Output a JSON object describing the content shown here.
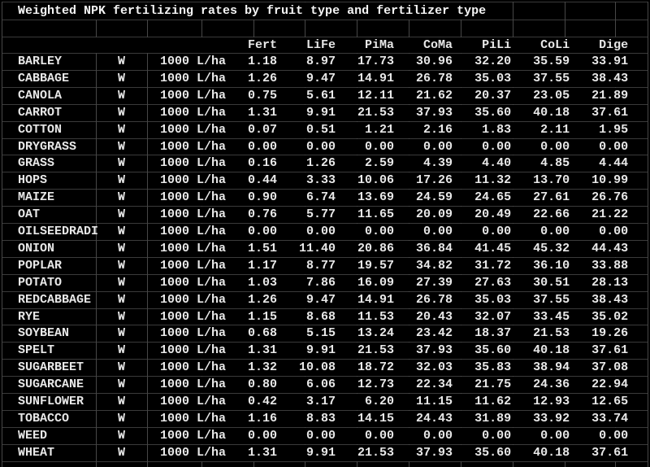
{
  "title": "Weighted NPK fertilizing rates by fruit type and fertilizer type",
  "table": {
    "column_headers": [
      "Fert",
      "LiFe",
      "PiMa",
      "CoMa",
      "PiLi",
      "CoLi",
      "Dige"
    ],
    "rows": [
      {
        "crop": "BARLEY",
        "marker": "W",
        "rate": "1000 L/ha",
        "values": [
          "1.18",
          "8.97",
          "17.73",
          "30.96",
          "32.20",
          "35.59",
          "33.91"
        ]
      },
      {
        "crop": "CABBAGE",
        "marker": "W",
        "rate": "1000 L/ha",
        "values": [
          "1.26",
          "9.47",
          "14.91",
          "26.78",
          "35.03",
          "37.55",
          "38.43"
        ]
      },
      {
        "crop": "CANOLA",
        "marker": "W",
        "rate": "1000 L/ha",
        "values": [
          "0.75",
          "5.61",
          "12.11",
          "21.62",
          "20.37",
          "23.05",
          "21.89"
        ]
      },
      {
        "crop": "CARROT",
        "marker": "W",
        "rate": "1000 L/ha",
        "values": [
          "1.31",
          "9.91",
          "21.53",
          "37.93",
          "35.60",
          "40.18",
          "37.61"
        ]
      },
      {
        "crop": "COTTON",
        "marker": "W",
        "rate": "1000 L/ha",
        "values": [
          "0.07",
          "0.51",
          "1.21",
          "2.16",
          "1.83",
          "2.11",
          "1.95"
        ]
      },
      {
        "crop": "DRYGRASS",
        "marker": "W",
        "rate": "1000 L/ha",
        "values": [
          "0.00",
          "0.00",
          "0.00",
          "0.00",
          "0.00",
          "0.00",
          "0.00"
        ]
      },
      {
        "crop": "GRASS",
        "marker": "W",
        "rate": "1000 L/ha",
        "values": [
          "0.16",
          "1.26",
          "2.59",
          "4.39",
          "4.40",
          "4.85",
          "4.44"
        ]
      },
      {
        "crop": "HOPS",
        "marker": "W",
        "rate": "1000 L/ha",
        "values": [
          "0.44",
          "3.33",
          "10.06",
          "17.26",
          "11.32",
          "13.70",
          "10.99"
        ]
      },
      {
        "crop": "MAIZE",
        "marker": "W",
        "rate": "1000 L/ha",
        "values": [
          "0.90",
          "6.74",
          "13.69",
          "24.59",
          "24.65",
          "27.61",
          "26.76"
        ]
      },
      {
        "crop": "OAT",
        "marker": "W",
        "rate": "1000 L/ha",
        "values": [
          "0.76",
          "5.77",
          "11.65",
          "20.09",
          "20.49",
          "22.66",
          "21.22"
        ]
      },
      {
        "crop": "OILSEEDRADI",
        "marker": "W",
        "rate": "1000 L/ha",
        "values": [
          "0.00",
          "0.00",
          "0.00",
          "0.00",
          "0.00",
          "0.00",
          "0.00"
        ]
      },
      {
        "crop": "ONION",
        "marker": "W",
        "rate": "1000 L/ha",
        "values": [
          "1.51",
          "11.40",
          "20.86",
          "36.84",
          "41.45",
          "45.32",
          "44.43"
        ]
      },
      {
        "crop": "POPLAR",
        "marker": "W",
        "rate": "1000 L/ha",
        "values": [
          "1.17",
          "8.77",
          "19.57",
          "34.82",
          "31.72",
          "36.10",
          "33.88"
        ]
      },
      {
        "crop": "POTATO",
        "marker": "W",
        "rate": "1000 L/ha",
        "values": [
          "1.03",
          "7.86",
          "16.09",
          "27.39",
          "27.63",
          "30.51",
          "28.13"
        ]
      },
      {
        "crop": "REDCABBAGE",
        "marker": "W",
        "rate": "1000 L/ha",
        "values": [
          "1.26",
          "9.47",
          "14.91",
          "26.78",
          "35.03",
          "37.55",
          "38.43"
        ]
      },
      {
        "crop": "RYE",
        "marker": "W",
        "rate": "1000 L/ha",
        "values": [
          "1.15",
          "8.68",
          "11.53",
          "20.43",
          "32.07",
          "33.45",
          "35.02"
        ]
      },
      {
        "crop": "SOYBEAN",
        "marker": "W",
        "rate": "1000 L/ha",
        "values": [
          "0.68",
          "5.15",
          "13.24",
          "23.42",
          "18.37",
          "21.53",
          "19.26"
        ]
      },
      {
        "crop": "SPELT",
        "marker": "W",
        "rate": "1000 L/ha",
        "values": [
          "1.31",
          "9.91",
          "21.53",
          "37.93",
          "35.60",
          "40.18",
          "37.61"
        ]
      },
      {
        "crop": "SUGARBEET",
        "marker": "W",
        "rate": "1000 L/ha",
        "values": [
          "1.32",
          "10.08",
          "18.72",
          "32.03",
          "35.83",
          "38.94",
          "37.08"
        ]
      },
      {
        "crop": "SUGARCANE",
        "marker": "W",
        "rate": "1000 L/ha",
        "values": [
          "0.80",
          "6.06",
          "12.73",
          "22.34",
          "21.75",
          "24.36",
          "22.94"
        ]
      },
      {
        "crop": "SUNFLOWER",
        "marker": "W",
        "rate": "1000 L/ha",
        "values": [
          "0.42",
          "3.17",
          "6.20",
          "11.15",
          "11.62",
          "12.93",
          "12.65"
        ]
      },
      {
        "crop": "TOBACCO",
        "marker": "W",
        "rate": "1000 L/ha",
        "values": [
          "1.16",
          "8.83",
          "14.15",
          "24.43",
          "31.89",
          "33.92",
          "33.74"
        ]
      },
      {
        "crop": "WEED",
        "marker": "W",
        "rate": "1000 L/ha",
        "values": [
          "0.00",
          "0.00",
          "0.00",
          "0.00",
          "0.00",
          "0.00",
          "0.00"
        ]
      },
      {
        "crop": "WHEAT",
        "marker": "W",
        "rate": "1000 L/ha",
        "values": [
          "1.31",
          "9.91",
          "21.53",
          "37.93",
          "35.60",
          "40.18",
          "37.61"
        ]
      }
    ]
  },
  "colors": {
    "background": "#000000",
    "gridline_horizontal": "#3a3a3a",
    "gridline_vertical": "#474747",
    "text": "#e8e8e8",
    "title_text": "#f5f5f5"
  }
}
